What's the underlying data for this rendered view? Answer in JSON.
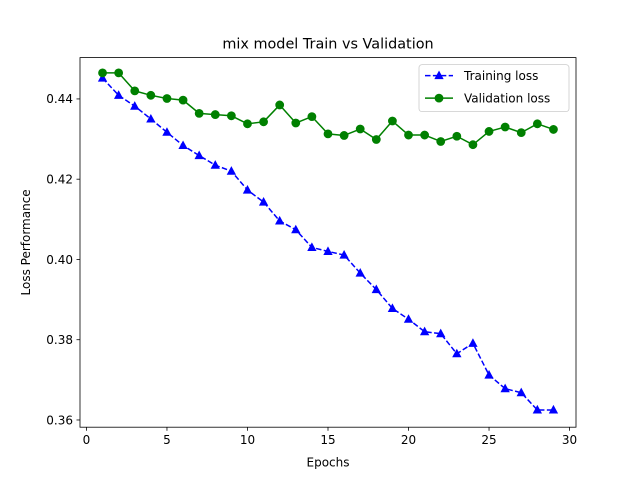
{
  "chart_data": {
    "type": "line",
    "title": "mix model Train vs Validation",
    "xlabel": "Epochs",
    "ylabel": "Loss Performance",
    "xlim": [
      -0.4,
      30.4
    ],
    "ylim": [
      0.3582,
      0.4503
    ],
    "xticks": [
      0,
      5,
      10,
      15,
      20,
      25,
      30
    ],
    "yticks": [
      0.36,
      0.38,
      0.4,
      0.42,
      0.44
    ],
    "ytick_labels": [
      "0.36",
      "0.38",
      "0.40",
      "0.42",
      "0.44"
    ],
    "grid": false,
    "legend_position": "top-right",
    "x": [
      1,
      2,
      3,
      4,
      5,
      6,
      7,
      8,
      9,
      10,
      11,
      12,
      13,
      14,
      15,
      16,
      17,
      18,
      19,
      20,
      21,
      22,
      23,
      24,
      25,
      26,
      27,
      28,
      29
    ],
    "series": [
      {
        "name": "Training loss",
        "color": "#0000ff",
        "linestyle": "dashed",
        "marker": "triangle-up",
        "values": [
          0.4452,
          0.4409,
          0.4382,
          0.435,
          0.4317,
          0.4284,
          0.4259,
          0.4235,
          0.422,
          0.4173,
          0.4143,
          0.4096,
          0.4074,
          0.403,
          0.402,
          0.4011,
          0.3966,
          0.3925,
          0.3878,
          0.3851,
          0.382,
          0.3815,
          0.3765,
          0.3791,
          0.3712,
          0.3678,
          0.3668,
          0.3625,
          0.3625
        ]
      },
      {
        "name": "Validation loss",
        "color": "#008000",
        "linestyle": "solid",
        "marker": "circle",
        "values": [
          0.4465,
          0.4465,
          0.442,
          0.4409,
          0.4401,
          0.4397,
          0.4364,
          0.4361,
          0.4358,
          0.4338,
          0.4343,
          0.4385,
          0.434,
          0.4356,
          0.4313,
          0.4309,
          0.4325,
          0.4299,
          0.4345,
          0.431,
          0.431,
          0.4294,
          0.4307,
          0.4286,
          0.4319,
          0.433,
          0.4316,
          0.4338,
          0.4324
        ]
      }
    ]
  }
}
